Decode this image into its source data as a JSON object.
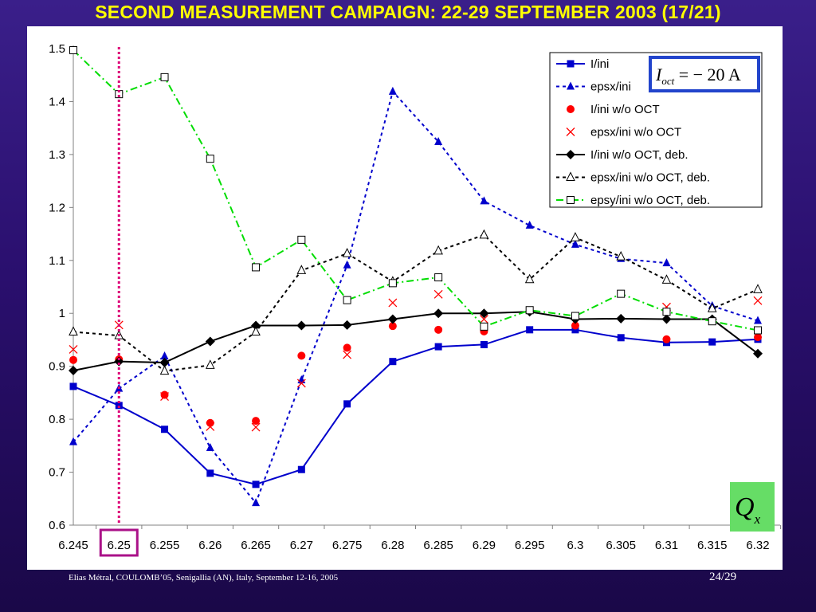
{
  "slide": {
    "title": "SECOND MEASUREMENT CAMPAIGN: 22-29 SEPTEMBER 2003 (17/21)",
    "footer": "Elias Métral, COULOMB’05, Senigallia (AN), Italy, September 12-16, 2005",
    "page": "24/29"
  },
  "annotations": {
    "current_label": {
      "var": "I",
      "sub": "oct",
      "rest": " = − 20 A"
    },
    "plane_label": {
      "var": "Q",
      "sub": "x"
    },
    "highlighted_tune": 6.25
  },
  "colors": {
    "title": "#ffff00",
    "blue": "#0000cc",
    "red": "#ff0000",
    "green": "#00dd00",
    "marker_line": "#dd0077",
    "box_border": "#2244cc",
    "q_box_bg": "#66dd66"
  },
  "chart_data": {
    "type": "line",
    "title": "",
    "xlabel": "",
    "ylabel": "",
    "x": [
      6.245,
      6.25,
      6.255,
      6.26,
      6.265,
      6.27,
      6.275,
      6.28,
      6.285,
      6.29,
      6.295,
      6.3,
      6.305,
      6.31,
      6.315,
      6.32
    ],
    "xticks": [
      "6.245",
      "6.25",
      "6.255",
      "6.26",
      "6.265",
      "6.27",
      "6.275",
      "6.28",
      "6.285",
      "6.29",
      "6.295",
      "6.3",
      "6.305",
      "6.31",
      "6.315",
      "6.32"
    ],
    "yticks": [
      "0.6",
      "0.7",
      "0.8",
      "0.9",
      "1",
      "1.1",
      "1.2",
      "1.3",
      "1.4",
      "1.5"
    ],
    "ylim": [
      0.6,
      1.5
    ],
    "grid": false,
    "legend_position": "top-right",
    "series": [
      {
        "name": "I/ini",
        "color": "#0000cc",
        "line": "solid",
        "marker": "square-filled",
        "values": [
          0.862,
          0.826,
          0.781,
          0.698,
          0.677,
          0.705,
          0.829,
          0.909,
          0.937,
          0.941,
          0.969,
          0.969,
          0.954,
          0.945,
          0.946,
          0.951
        ]
      },
      {
        "name": "epsx/ini",
        "color": "#0000cc",
        "line": "dotted",
        "marker": "triangle-filled",
        "values": [
          0.757,
          0.858,
          0.919,
          0.746,
          0.642,
          0.874,
          1.091,
          1.419,
          1.324,
          1.212,
          1.166,
          1.13,
          1.103,
          1.095,
          1.014,
          0.986
        ]
      },
      {
        "name": "I/ini w/o OCT",
        "color": "#ff0000",
        "line": "none",
        "marker": "circle-filled",
        "values": [
          0.912,
          0.913,
          0.846,
          0.793,
          0.797,
          0.92,
          0.935,
          0.976,
          0.969,
          0.966,
          null,
          0.977,
          null,
          0.951,
          null,
          0.955
        ]
      },
      {
        "name": "epsx/ini w/o OCT",
        "color": "#ff0000",
        "line": "none",
        "marker": "x",
        "values": [
          0.932,
          0.978,
          0.843,
          0.786,
          0.785,
          0.868,
          0.922,
          1.02,
          1.036,
          0.989,
          null,
          null,
          null,
          1.012,
          null,
          1.024
        ]
      },
      {
        "name": "I/ini w/o OCT, deb.",
        "color": "#000000",
        "line": "solid",
        "marker": "diamond-filled",
        "values": [
          0.892,
          0.909,
          0.907,
          0.947,
          0.977,
          0.977,
          0.978,
          0.989,
          1.0,
          1.0,
          1.003,
          0.989,
          0.99,
          0.989,
          0.989,
          0.924
        ]
      },
      {
        "name": "epsx/ini w/o OCT, deb.",
        "color": "#000000",
        "line": "dotted",
        "marker": "triangle-open",
        "values": [
          0.965,
          0.958,
          0.891,
          0.902,
          0.965,
          1.081,
          1.113,
          1.06,
          1.118,
          1.148,
          1.064,
          1.143,
          1.107,
          1.063,
          1.009,
          1.045
        ]
      },
      {
        "name": "epsy/ini w/o OCT, deb.",
        "color": "#00dd00",
        "line": "dashdot",
        "marker": "square-open",
        "values": [
          1.497,
          1.414,
          1.446,
          1.292,
          1.087,
          1.139,
          1.025,
          1.057,
          1.068,
          0.975,
          1.006,
          0.995,
          1.037,
          1.003,
          0.985,
          0.968
        ]
      }
    ]
  }
}
